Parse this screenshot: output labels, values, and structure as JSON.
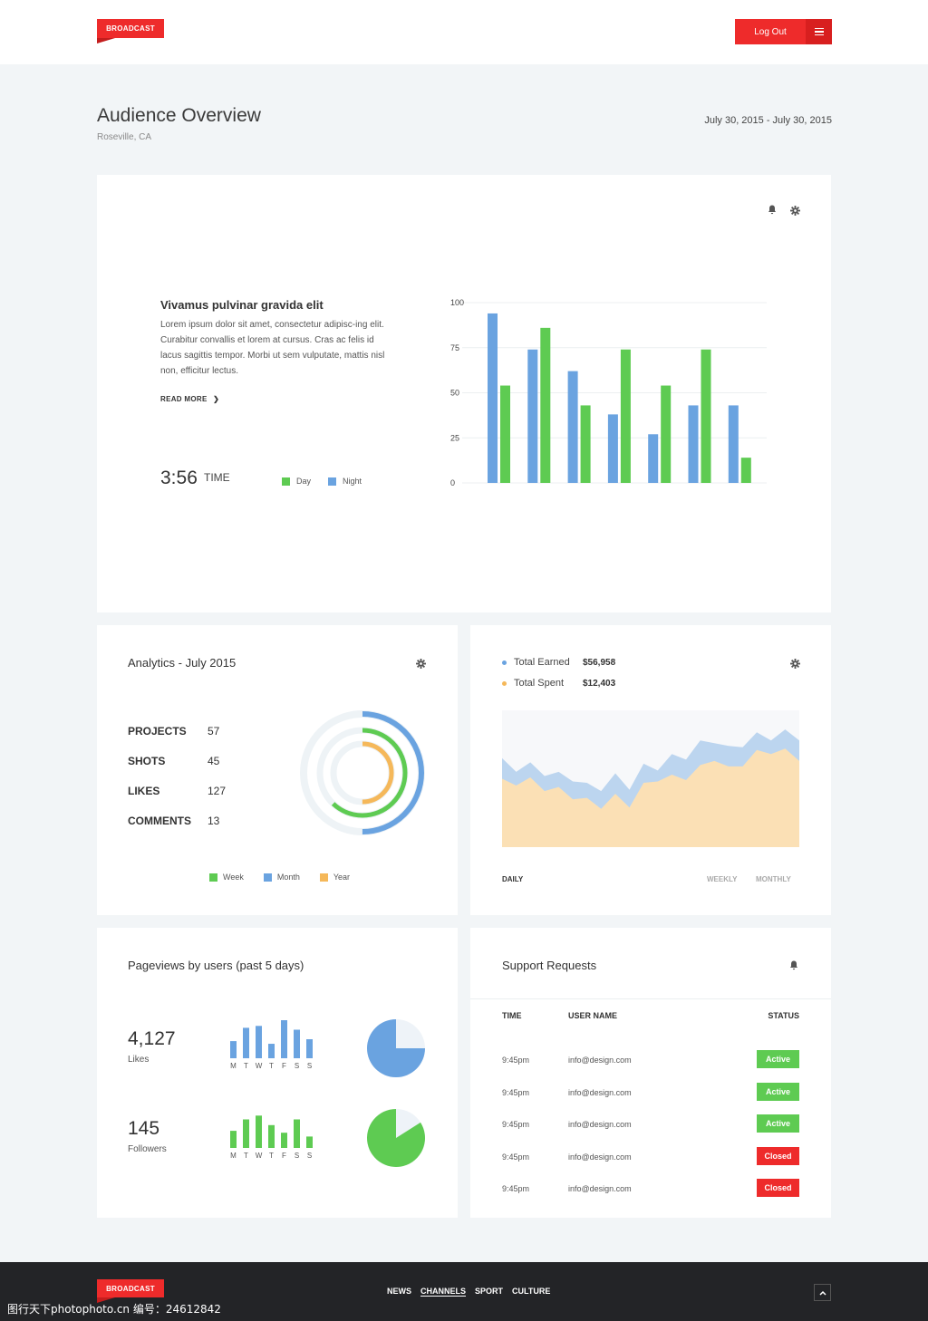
{
  "header": {
    "logo": "BROADCAST",
    "logout_label": "Log Out"
  },
  "page": {
    "title": "Audience Overview",
    "location": "Roseville, CA",
    "date_range": "July 30, 2015 - July 30, 2015"
  },
  "overview": {
    "heading": "Vivamus pulvinar gravida elit",
    "body": "Lorem ipsum dolor sit amet, consectetur adipisc-ing elit. Curabitur convallis et lorem at cursus. Cras ac felis id lacus sagittis tempor. Morbi ut sem vulputate, mattis nisl non, efficitur lectus.",
    "read_more": "READ MORE",
    "time_value": "3:56",
    "time_label": "TIME",
    "legend": [
      {
        "label": "Day",
        "color": "#5ecb52"
      },
      {
        "label": "Night",
        "color": "#6aa3e0"
      }
    ]
  },
  "chart_data": [
    {
      "type": "bar",
      "ylim": [
        0,
        100
      ],
      "yticks": [
        0,
        25,
        50,
        75,
        100
      ],
      "series": [
        {
          "name": "Night",
          "color": "#6aa3e0",
          "values": [
            94,
            74,
            62,
            38,
            27,
            43,
            43
          ]
        },
        {
          "name": "Day",
          "color": "#5ecb52",
          "values": [
            54,
            86,
            43,
            74,
            54,
            74,
            14
          ]
        }
      ]
    },
    {
      "type": "area",
      "series": [
        {
          "name": "Total Earned",
          "color": "#bcd5ef",
          "values": [
            65,
            55,
            62,
            52,
            55,
            48,
            47,
            41,
            54,
            42,
            61,
            56,
            68,
            64,
            78,
            76,
            74,
            73,
            84,
            78,
            86,
            78
          ]
        },
        {
          "name": "Total Spent",
          "color": "#fbe0b5",
          "values": [
            50,
            45,
            51,
            41,
            44,
            35,
            36,
            28,
            39,
            29,
            47,
            48,
            53,
            49,
            60,
            63,
            59,
            59,
            71,
            68,
            72,
            63
          ]
        }
      ]
    }
  ],
  "analytics": {
    "title": "Analytics - July 2015",
    "stats": [
      {
        "label": "PROJECTS",
        "value": "57"
      },
      {
        "label": "SHOTS",
        "value": "45"
      },
      {
        "label": "LIKES",
        "value": "127"
      },
      {
        "label": "COMMENTS",
        "value": "13"
      }
    ],
    "rings": [
      {
        "name": "Month",
        "color": "#6aa3e0",
        "fraction": 0.5
      },
      {
        "name": "Week",
        "color": "#5ecb52",
        "fraction": 0.62
      },
      {
        "name": "Year",
        "color": "#f5b85a",
        "fraction": 0.5
      }
    ],
    "legend": [
      {
        "label": "Week",
        "color": "#5ecb52"
      },
      {
        "label": "Month",
        "color": "#6aa3e0"
      },
      {
        "label": "Year",
        "color": "#f5b85a"
      }
    ]
  },
  "earnings": {
    "earned_label": "Total Earned",
    "earned_value": "$56,958",
    "earned_color": "#6aa3e0",
    "spent_label": "Total Spent",
    "spent_value": "$12,403",
    "spent_color": "#f5b85a",
    "tabs": [
      "DAILY",
      "WEEKLY",
      "MONTHLY"
    ]
  },
  "pageviews": {
    "title": "Pageviews by users (past 5 days)",
    "days": [
      "M",
      "T",
      "W",
      "T",
      "F",
      "S",
      "S"
    ],
    "rows": [
      {
        "value": "4,127",
        "label": "Likes",
        "color": "#6aa3e0",
        "bars": [
          0.45,
          0.8,
          0.85,
          0.38,
          1.0,
          0.75,
          0.5
        ],
        "pie_fraction": 0.75
      },
      {
        "value": "145",
        "label": "Followers",
        "color": "#5ecb52",
        "bars": [
          0.45,
          0.75,
          0.85,
          0.6,
          0.4,
          0.75,
          0.3
        ],
        "pie_fraction": 0.84
      }
    ]
  },
  "support": {
    "title": "Support Requests",
    "columns": [
      "TIME",
      "USER NAME",
      "STATUS"
    ],
    "rows": [
      {
        "time": "9:45pm",
        "user": "info@design.com",
        "status": "Active",
        "color": "#5ecb52"
      },
      {
        "time": "9:45pm",
        "user": "info@design.com",
        "status": "Active",
        "color": "#5ecb52"
      },
      {
        "time": "9:45pm",
        "user": "info@design.com",
        "status": "Active",
        "color": "#5ecb52"
      },
      {
        "time": "9:45pm",
        "user": "info@design.com",
        "status": "Closed",
        "color": "#ee2b2b"
      },
      {
        "time": "9:45pm",
        "user": "info@design.com",
        "status": "Closed",
        "color": "#ee2b2b"
      }
    ]
  },
  "footer": {
    "logo": "BROADCAST",
    "nav": [
      "NEWS",
      "CHANNELS",
      "SPORT",
      "CULTURE"
    ],
    "watermark": "图行天下photophoto.cn    编号：24612842"
  }
}
